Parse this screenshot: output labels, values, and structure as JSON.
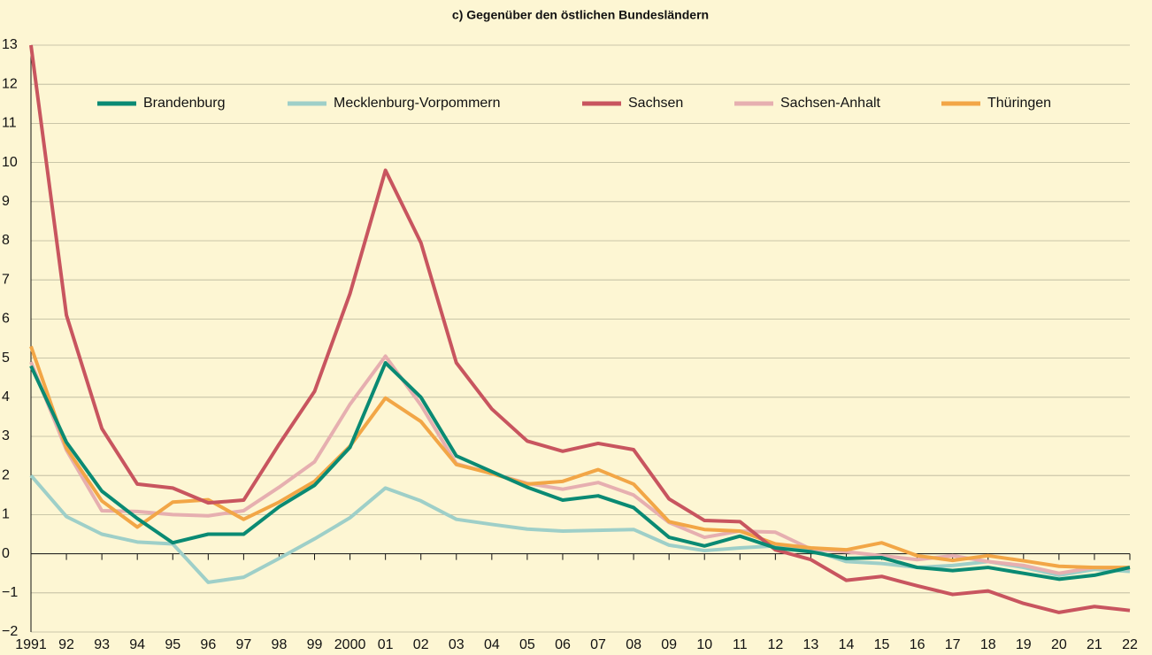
{
  "chart_data": {
    "type": "line",
    "title": "c) Gegenüber den östlichen Bundesländern",
    "categories": [
      "1991",
      "92",
      "93",
      "94",
      "95",
      "96",
      "97",
      "98",
      "99",
      "2000",
      "01",
      "02",
      "03",
      "04",
      "05",
      "06",
      "07",
      "08",
      "09",
      "10",
      "11",
      "12",
      "13",
      "14",
      "15",
      "16",
      "17",
      "18",
      "19",
      "20",
      "21",
      "22"
    ],
    "ylim": [
      -2,
      13
    ],
    "yticks": [
      {
        "value": -2,
        "label": "−2"
      },
      {
        "value": -1,
        "label": "−1"
      },
      0,
      1,
      2,
      3,
      4,
      5,
      6,
      7,
      8,
      9,
      10,
      11,
      12,
      13
    ],
    "grid": true,
    "legend": "top",
    "series": [
      {
        "name": "Brandenburg",
        "color": "#0a8a73",
        "values": [
          4.8,
          2.85,
          1.6,
          0.9,
          0.28,
          0.5,
          0.5,
          1.2,
          1.75,
          2.72,
          4.88,
          4.0,
          2.5,
          2.1,
          1.7,
          1.37,
          1.48,
          1.18,
          0.42,
          0.2,
          0.45,
          0.15,
          0.05,
          -0.12,
          -0.1,
          -0.35,
          -0.43,
          -0.35,
          -0.5,
          -0.65,
          -0.55,
          -0.35
        ]
      },
      {
        "name": "Mecklenburg-Vorpommern",
        "color": "#9ecfc8",
        "values": [
          2.0,
          0.95,
          0.5,
          0.3,
          0.25,
          -0.73,
          -0.6,
          -0.12,
          0.38,
          0.92,
          1.68,
          1.35,
          0.88,
          0.75,
          0.63,
          0.58,
          0.6,
          0.62,
          0.22,
          0.08,
          0.15,
          0.2,
          0.1,
          -0.2,
          -0.25,
          -0.35,
          -0.3,
          -0.2,
          -0.35,
          -0.55,
          -0.4,
          -0.45
        ]
      },
      {
        "name": "Sachsen",
        "color": "#c8555f",
        "values": [
          13.0,
          6.1,
          3.2,
          1.78,
          1.68,
          1.3,
          1.37,
          2.8,
          4.15,
          6.65,
          9.8,
          7.95,
          4.88,
          3.7,
          2.88,
          2.62,
          2.82,
          2.66,
          1.4,
          0.85,
          0.82,
          0.1,
          -0.15,
          -0.68,
          -0.58,
          -0.82,
          -1.04,
          -0.95,
          -1.27,
          -1.5,
          -1.35,
          -1.45
        ]
      },
      {
        "name": "Sachsen-Anhalt",
        "color": "#e6afb0",
        "values": [
          4.9,
          2.65,
          1.1,
          1.08,
          1.0,
          0.97,
          1.1,
          1.7,
          2.35,
          3.82,
          5.05,
          3.8,
          2.3,
          2.05,
          1.8,
          1.65,
          1.82,
          1.5,
          0.8,
          0.42,
          0.58,
          0.55,
          0.12,
          0.05,
          -0.05,
          -0.15,
          -0.05,
          -0.2,
          -0.3,
          -0.5,
          -0.35,
          -0.38
        ]
      },
      {
        "name": "Thüringen",
        "color": "#f2a646",
        "values": [
          5.3,
          2.7,
          1.35,
          0.68,
          1.32,
          1.38,
          0.88,
          1.32,
          1.85,
          2.75,
          3.98,
          3.38,
          2.28,
          2.05,
          1.78,
          1.85,
          2.15,
          1.78,
          0.82,
          0.62,
          0.58,
          0.25,
          0.15,
          0.1,
          0.28,
          -0.05,
          -0.17,
          -0.05,
          -0.18,
          -0.32,
          -0.35,
          -0.35
        ]
      }
    ]
  }
}
